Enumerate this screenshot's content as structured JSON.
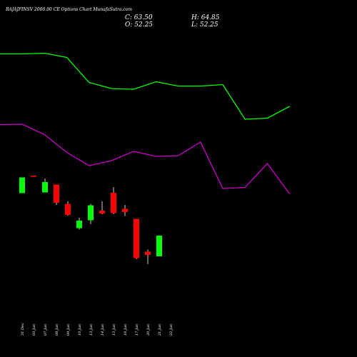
{
  "header": {
    "title": "BAJAJFINSV 2000.00  CE Options  Chart MunafaSutra.com",
    "open_label": "O: 52.25",
    "high_label": "H: 64.85",
    "low_label": "L: 52.25",
    "close_label": "C: 63.50"
  },
  "colors": {
    "background": "#000000",
    "upper_line": "#00ff00",
    "lower_line": "#cc00cc",
    "bullish": "#00ff00",
    "bearish": "#ff0000",
    "wick": "#ffffff"
  },
  "chart_data": {
    "type": "candlestick",
    "title": "BAJAJFINSV 2000.00  CE Options  Chart MunafaSutra.com",
    "open": 52.25,
    "high": 64.85,
    "low": 52.25,
    "close": 63.5,
    "grid": false,
    "legend": "none",
    "categories": [
      "31 Dec",
      "03 Jan",
      "07 Jan",
      "08 Jan",
      "09 Jan",
      "10 Jan",
      "13 Jan",
      "14 Jan",
      "15 Jan",
      "16 Jan",
      "17 Jan",
      "20 Jan",
      "21 Jan",
      "22 Jan"
    ],
    "candles": [
      {
        "date": "31 Dec",
        "open": 159,
        "high": 203,
        "low": 159,
        "close": 203,
        "direction": "up"
      },
      {
        "date": "03 Jan",
        "open": 208,
        "high": 208,
        "low": 208,
        "close": 208,
        "direction": "down"
      },
      {
        "date": "07 Jan",
        "open": 161,
        "high": 200,
        "low": 161,
        "close": 190,
        "direction": "up"
      },
      {
        "date": "08 Jan",
        "open": 183,
        "high": 183,
        "low": 126,
        "close": 132,
        "direction": "down"
      },
      {
        "date": "09 Jan",
        "open": 129,
        "high": 136,
        "low": 96,
        "close": 98,
        "direction": "down"
      },
      {
        "date": "10 Jan",
        "open": 61,
        "high": 90,
        "low": 57,
        "close": 82,
        "direction": "up"
      },
      {
        "date": "13 Jan",
        "open": 83,
        "high": 129,
        "low": 72,
        "close": 125,
        "direction": "up"
      },
      {
        "date": "14 Jan",
        "open": 110,
        "high": 136,
        "low": 100,
        "close": 102,
        "direction": "down"
      },
      {
        "date": "15 Jan",
        "open": 160,
        "high": 176,
        "low": 100,
        "close": 103,
        "direction": "down"
      },
      {
        "date": "16 Jan",
        "open": 115,
        "high": 126,
        "low": 95,
        "close": 106,
        "direction": "down"
      },
      {
        "date": "17 Jan",
        "open": 87,
        "high": 87,
        "low": -26,
        "close": -23,
        "direction": "down"
      },
      {
        "date": "20 Jan",
        "open": -5,
        "high": 1,
        "low": -40,
        "close": -14,
        "direction": "down"
      },
      {
        "date": "21 Jan",
        "open": -18,
        "high": 40,
        "low": -18,
        "close": 40,
        "direction": "up"
      }
    ],
    "series": [
      {
        "values": [
          549,
          549,
          551,
          539,
          469,
          452,
          450,
          471,
          459,
          459,
          463,
          366,
          369,
          402
        ]
      },
      {
        "values": [
          351,
          352,
          323,
          273,
          236,
          250,
          276,
          262,
          264,
          302,
          172,
          175,
          242,
          157
        ]
      }
    ]
  }
}
